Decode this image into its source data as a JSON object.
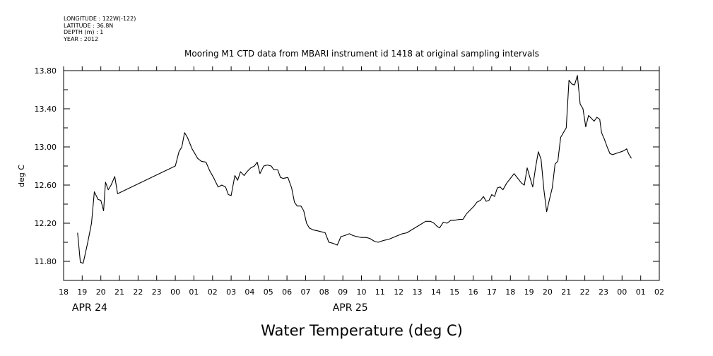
{
  "meta_lines": [
    "LONGITUDE : 122W(-122)",
    "LATITUDE : 36.8N",
    "DEPTH (m) : 1",
    "YEAR : 2012"
  ],
  "chart_data": {
    "type": "line",
    "title": "Mooring M1 CTD data from MBARI instrument id 1418 at original sampling intervals",
    "xlabel": "Water Temperature (deg C)",
    "ylabel": "deg C",
    "x_unit": "hour",
    "xlim": [
      18,
      50
    ],
    "ylim": [
      11.6,
      13.8
    ],
    "x_tick_values": [
      18,
      19,
      20,
      21,
      22,
      23,
      24,
      25,
      26,
      27,
      28,
      29,
      30,
      31,
      32,
      33,
      34,
      35,
      36,
      37,
      38,
      39,
      40,
      41,
      42,
      43,
      44,
      45,
      46,
      47,
      48,
      49,
      50
    ],
    "x_tick_labels": [
      "18",
      "19",
      "20",
      "21",
      "22",
      "23",
      "00",
      "01",
      "02",
      "03",
      "04",
      "05",
      "06",
      "07",
      "08",
      "09",
      "10",
      "11",
      "12",
      "13",
      "14",
      "15",
      "16",
      "17",
      "18",
      "19",
      "20",
      "21",
      "22",
      "23",
      "00",
      "01",
      "02"
    ],
    "date_labels": [
      {
        "text": "APR 24",
        "at": 19.4
      },
      {
        "text": "APR 25",
        "at": 33.4
      }
    ],
    "y_ticks": [
      11.8,
      12.2,
      12.6,
      13.0,
      13.4,
      13.8
    ],
    "y_tick_labels": [
      "11.80",
      "12.20",
      "12.60",
      "13.00",
      "13.40",
      "13.80"
    ],
    "series": [
      {
        "values": [
          [
            18.75,
            12.1
          ],
          [
            18.9,
            11.79
          ],
          [
            19.05,
            11.78
          ],
          [
            19.3,
            12.0
          ],
          [
            19.5,
            12.2
          ],
          [
            19.65,
            12.53
          ],
          [
            19.85,
            12.45
          ],
          [
            20.0,
            12.44
          ],
          [
            20.15,
            12.33
          ],
          [
            20.25,
            12.63
          ],
          [
            20.4,
            12.55
          ],
          [
            20.55,
            12.6
          ],
          [
            20.75,
            12.69
          ],
          [
            20.9,
            12.51
          ],
          [
            24.0,
            12.8
          ],
          [
            24.2,
            12.95
          ],
          [
            24.35,
            13.0
          ],
          [
            24.5,
            13.15
          ],
          [
            24.65,
            13.1
          ],
          [
            24.9,
            12.98
          ],
          [
            25.2,
            12.88
          ],
          [
            25.4,
            12.85
          ],
          [
            25.65,
            12.84
          ],
          [
            25.85,
            12.75
          ],
          [
            26.05,
            12.68
          ],
          [
            26.3,
            12.58
          ],
          [
            26.5,
            12.6
          ],
          [
            26.7,
            12.58
          ],
          [
            26.85,
            12.5
          ],
          [
            27.0,
            12.49
          ],
          [
            27.2,
            12.7
          ],
          [
            27.35,
            12.65
          ],
          [
            27.5,
            12.74
          ],
          [
            27.7,
            12.7
          ],
          [
            27.85,
            12.74
          ],
          [
            28.05,
            12.78
          ],
          [
            28.25,
            12.8
          ],
          [
            28.4,
            12.84
          ],
          [
            28.55,
            12.72
          ],
          [
            28.75,
            12.8
          ],
          [
            28.95,
            12.81
          ],
          [
            29.15,
            12.8
          ],
          [
            29.3,
            12.76
          ],
          [
            29.5,
            12.76
          ],
          [
            29.65,
            12.68
          ],
          [
            29.8,
            12.67
          ],
          [
            30.05,
            12.68
          ],
          [
            30.25,
            12.57
          ],
          [
            30.4,
            12.42
          ],
          [
            30.55,
            12.38
          ],
          [
            30.75,
            12.38
          ],
          [
            30.9,
            12.33
          ],
          [
            31.05,
            12.2
          ],
          [
            31.2,
            12.15
          ],
          [
            31.4,
            12.13
          ],
          [
            31.65,
            12.12
          ],
          [
            31.85,
            12.11
          ],
          [
            32.05,
            12.1
          ],
          [
            32.25,
            12.0
          ],
          [
            32.45,
            11.99
          ],
          [
            32.7,
            11.97
          ],
          [
            32.9,
            12.06
          ],
          [
            33.1,
            12.07
          ],
          [
            33.35,
            12.09
          ],
          [
            33.55,
            12.07
          ],
          [
            33.75,
            12.06
          ],
          [
            34.0,
            12.05
          ],
          [
            34.25,
            12.05
          ],
          [
            34.45,
            12.04
          ],
          [
            34.7,
            12.01
          ],
          [
            34.9,
            12.0
          ],
          [
            35.2,
            12.02
          ],
          [
            35.45,
            12.03
          ],
          [
            35.7,
            12.05
          ],
          [
            35.95,
            12.07
          ],
          [
            36.2,
            12.09
          ],
          [
            36.45,
            12.1
          ],
          [
            36.7,
            12.13
          ],
          [
            36.95,
            12.16
          ],
          [
            37.2,
            12.19
          ],
          [
            37.45,
            12.22
          ],
          [
            37.7,
            12.22
          ],
          [
            37.9,
            12.2
          ],
          [
            38.05,
            12.17
          ],
          [
            38.2,
            12.15
          ],
          [
            38.4,
            12.21
          ],
          [
            38.6,
            12.2
          ],
          [
            38.8,
            12.23
          ],
          [
            39.0,
            12.23
          ],
          [
            39.25,
            12.24
          ],
          [
            39.45,
            12.24
          ],
          [
            39.65,
            12.3
          ],
          [
            39.85,
            12.34
          ],
          [
            40.05,
            12.38
          ],
          [
            40.2,
            12.42
          ],
          [
            40.4,
            12.44
          ],
          [
            40.55,
            12.48
          ],
          [
            40.7,
            12.43
          ],
          [
            40.85,
            12.44
          ],
          [
            41.0,
            12.5
          ],
          [
            41.15,
            12.48
          ],
          [
            41.3,
            12.57
          ],
          [
            41.45,
            12.58
          ],
          [
            41.6,
            12.55
          ],
          [
            41.8,
            12.62
          ],
          [
            42.0,
            12.67
          ],
          [
            42.2,
            12.72
          ],
          [
            42.4,
            12.67
          ],
          [
            42.6,
            12.62
          ],
          [
            42.75,
            12.6
          ],
          [
            42.9,
            12.78
          ],
          [
            43.05,
            12.68
          ],
          [
            43.2,
            12.58
          ],
          [
            43.35,
            12.78
          ],
          [
            43.5,
            12.95
          ],
          [
            43.65,
            12.87
          ],
          [
            43.8,
            12.55
          ],
          [
            43.95,
            12.32
          ],
          [
            44.1,
            12.45
          ],
          [
            44.25,
            12.57
          ],
          [
            44.4,
            12.82
          ],
          [
            44.55,
            12.85
          ],
          [
            44.7,
            13.1
          ],
          [
            44.85,
            13.15
          ],
          [
            45.0,
            13.2
          ],
          [
            45.15,
            13.7
          ],
          [
            45.3,
            13.66
          ],
          [
            45.45,
            13.65
          ],
          [
            45.6,
            13.75
          ],
          [
            45.75,
            13.45
          ],
          [
            45.9,
            13.4
          ],
          [
            46.05,
            13.21
          ],
          [
            46.2,
            13.33
          ],
          [
            46.35,
            13.3
          ],
          [
            46.5,
            13.27
          ],
          [
            46.65,
            13.31
          ],
          [
            46.8,
            13.29
          ],
          [
            46.9,
            13.15
          ],
          [
            47.05,
            13.08
          ],
          [
            47.2,
            13.0
          ],
          [
            47.35,
            12.93
          ],
          [
            47.5,
            12.92
          ],
          [
            47.65,
            12.93
          ],
          [
            47.8,
            12.94
          ],
          [
            47.95,
            12.95
          ],
          [
            48.1,
            12.96
          ],
          [
            48.25,
            12.98
          ],
          [
            48.35,
            12.93
          ],
          [
            48.5,
            12.88
          ]
        ]
      }
    ]
  }
}
